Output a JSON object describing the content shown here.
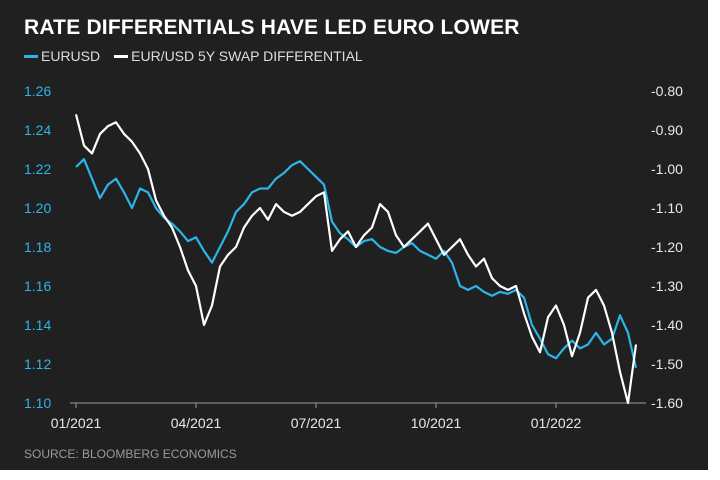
{
  "colors": {
    "eurusd": "#2bb5e8",
    "swap": "#ffffff",
    "background": "#202020",
    "source": "#9a9a9a"
  },
  "chart_data": {
    "type": "line",
    "title": "RATE DIFFERENTIALS HAVE LED EURO LOWER",
    "source": "SOURCE: BLOOMBERG ECONOMICS",
    "legend": [
      "EURUSD",
      "EUR/USD 5Y SWAP DIFFERENTIAL"
    ],
    "x_ticks": [
      "01/2021",
      "04/2021",
      "07/2021",
      "10/2021",
      "01/2022"
    ],
    "x_range_months": [
      0,
      14.1
    ],
    "left_axis": {
      "label": "EURUSD",
      "ylim": [
        1.1,
        1.26
      ],
      "ticks": [
        "1.26",
        "1.24",
        "1.22",
        "1.20",
        "1.18",
        "1.16",
        "1.14",
        "1.12",
        "1.10"
      ]
    },
    "right_axis": {
      "label": "EUR/USD 5Y SWAP DIFFERENTIAL",
      "ylim": [
        -1.6,
        -0.8
      ],
      "ticks": [
        "-0.80",
        "-0.90",
        "-1.00",
        "-1.10",
        "-1.20",
        "-1.30",
        "-1.40",
        "-1.50",
        "-1.60"
      ]
    },
    "series": [
      {
        "name": "EURUSD",
        "axis": "left",
        "x": [
          0,
          0.2,
          0.4,
          0.6,
          0.8,
          1.0,
          1.2,
          1.4,
          1.6,
          1.8,
          2.0,
          2.2,
          2.4,
          2.6,
          2.8,
          3.0,
          3.2,
          3.4,
          3.6,
          3.8,
          4.0,
          4.2,
          4.4,
          4.6,
          4.8,
          5.0,
          5.2,
          5.4,
          5.6,
          5.8,
          6.0,
          6.2,
          6.4,
          6.6,
          6.8,
          7.0,
          7.2,
          7.4,
          7.6,
          7.8,
          8.0,
          8.2,
          8.4,
          8.6,
          8.8,
          9.0,
          9.2,
          9.4,
          9.6,
          9.8,
          10.0,
          10.2,
          10.4,
          10.6,
          10.8,
          11.0,
          11.2,
          11.4,
          11.6,
          11.8,
          12.0,
          12.2,
          12.4,
          12.6,
          12.8,
          13.0,
          13.2,
          13.4,
          13.6,
          13.8,
          14.0
        ],
        "values": [
          1.221,
          1.225,
          1.215,
          1.205,
          1.212,
          1.215,
          1.208,
          1.2,
          1.21,
          1.208,
          1.2,
          1.195,
          1.192,
          1.188,
          1.183,
          1.185,
          1.178,
          1.172,
          1.18,
          1.188,
          1.198,
          1.202,
          1.208,
          1.21,
          1.21,
          1.215,
          1.218,
          1.222,
          1.224,
          1.22,
          1.216,
          1.212,
          1.193,
          1.187,
          1.184,
          1.18,
          1.183,
          1.184,
          1.18,
          1.178,
          1.177,
          1.18,
          1.182,
          1.178,
          1.176,
          1.174,
          1.178,
          1.172,
          1.16,
          1.158,
          1.16,
          1.157,
          1.155,
          1.157,
          1.156,
          1.158,
          1.154,
          1.14,
          1.133,
          1.125,
          1.123,
          1.128,
          1.132,
          1.128,
          1.13,
          1.136,
          1.13,
          1.133,
          1.145,
          1.136,
          1.118
        ]
      },
      {
        "name": "EUR/USD 5Y SWAP DIFFERENTIAL",
        "axis": "right",
        "x": [
          0,
          0.2,
          0.4,
          0.6,
          0.8,
          1.0,
          1.2,
          1.4,
          1.6,
          1.8,
          2.0,
          2.2,
          2.4,
          2.6,
          2.8,
          3.0,
          3.2,
          3.4,
          3.6,
          3.8,
          4.0,
          4.2,
          4.4,
          4.6,
          4.8,
          5.0,
          5.2,
          5.4,
          5.6,
          5.8,
          6.0,
          6.2,
          6.4,
          6.6,
          6.8,
          7.0,
          7.2,
          7.4,
          7.6,
          7.8,
          8.0,
          8.2,
          8.4,
          8.6,
          8.8,
          9.0,
          9.2,
          9.4,
          9.6,
          9.8,
          10.0,
          10.2,
          10.4,
          10.6,
          10.8,
          11.0,
          11.2,
          11.4,
          11.6,
          11.8,
          12.0,
          12.2,
          12.4,
          12.6,
          12.8,
          13.0,
          13.2,
          13.4,
          13.6,
          13.8,
          14.0
        ],
        "values": [
          -0.86,
          -0.94,
          -0.96,
          -0.91,
          -0.89,
          -0.88,
          -0.91,
          -0.93,
          -0.96,
          -1.0,
          -1.08,
          -1.12,
          -1.15,
          -1.2,
          -1.26,
          -1.3,
          -1.4,
          -1.35,
          -1.25,
          -1.22,
          -1.2,
          -1.15,
          -1.12,
          -1.1,
          -1.13,
          -1.09,
          -1.11,
          -1.12,
          -1.11,
          -1.09,
          -1.07,
          -1.06,
          -1.21,
          -1.18,
          -1.16,
          -1.2,
          -1.17,
          -1.15,
          -1.09,
          -1.11,
          -1.17,
          -1.2,
          -1.18,
          -1.16,
          -1.14,
          -1.18,
          -1.22,
          -1.2,
          -1.18,
          -1.22,
          -1.25,
          -1.23,
          -1.28,
          -1.3,
          -1.31,
          -1.3,
          -1.37,
          -1.43,
          -1.47,
          -1.38,
          -1.35,
          -1.4,
          -1.48,
          -1.42,
          -1.33,
          -1.31,
          -1.35,
          -1.42,
          -1.52,
          -1.6,
          -1.45
        ]
      }
    ]
  }
}
